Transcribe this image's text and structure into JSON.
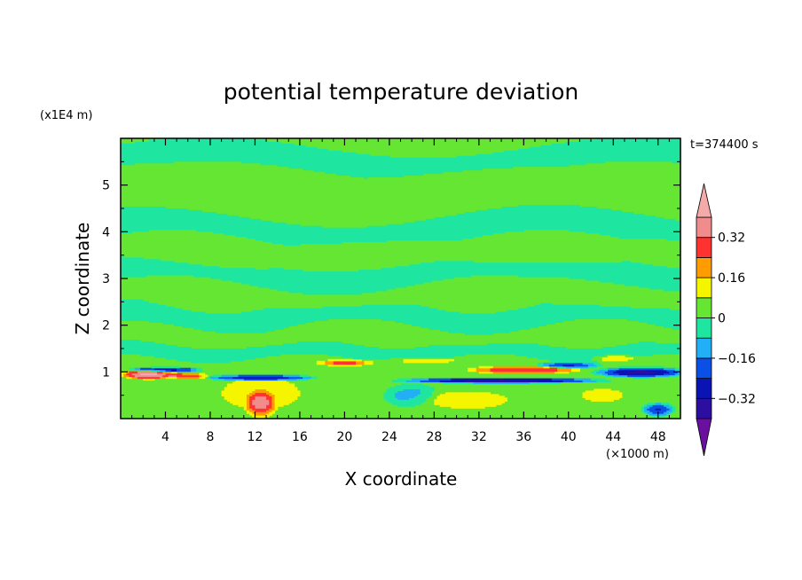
{
  "chart_data": {
    "type": "heatmap",
    "title": "potential temperature deviation",
    "xlabel": "X coordinate",
    "ylabel": "Z coordinate",
    "x_unit": "(×1000 m)",
    "y_unit": "(x1E4 m)",
    "time_label": "t=374400 s",
    "xlim": [
      0,
      50
    ],
    "ylim": [
      0,
      6
    ],
    "xticks": [
      4,
      8,
      12,
      16,
      20,
      24,
      28,
      32,
      36,
      40,
      44,
      48
    ],
    "yticks": [
      1,
      2,
      3,
      4,
      5
    ],
    "background_value": 0,
    "bands": [
      {
        "y": 5.55,
        "amp": 0.22,
        "th": 0.25,
        "value": -0.04,
        "ph": 0.3,
        "freq": 1.3
      },
      {
        "y": 5.1,
        "amp": 0.2,
        "th": 0.2,
        "value": 0.04,
        "ph": 1.1,
        "freq": 1.6
      },
      {
        "y": 4.55,
        "amp": 0.25,
        "th": 0.28,
        "value": 0.04,
        "ph": 2.0,
        "freq": 1.2
      },
      {
        "y": 4.1,
        "amp": 0.25,
        "th": 0.3,
        "value": -0.04,
        "ph": 0.7,
        "freq": 1.5
      },
      {
        "y": 3.55,
        "amp": 0.2,
        "th": 0.25,
        "value": 0.04,
        "ph": 2.6,
        "freq": 1.8
      },
      {
        "y": 3.1,
        "amp": 0.2,
        "th": 0.25,
        "value": -0.04,
        "ph": 1.4,
        "freq": 1.4
      },
      {
        "y": 2.65,
        "amp": 0.25,
        "th": 0.25,
        "value": 0.04,
        "ph": 0.2,
        "freq": 1.9
      },
      {
        "y": 2.2,
        "amp": 0.2,
        "th": 0.25,
        "value": -0.04,
        "ph": 2.2,
        "freq": 2.2
      },
      {
        "y": 1.8,
        "amp": 0.15,
        "th": 0.2,
        "value": 0.04,
        "ph": 0.9,
        "freq": 2.5
      },
      {
        "y": 1.45,
        "amp": 0.1,
        "th": 0.15,
        "value": -0.04,
        "ph": 1.7,
        "freq": 3.0
      }
    ],
    "blobs": [
      {
        "x": 12.5,
        "z": 0.88,
        "rx": 5.0,
        "rz": 0.07,
        "value": -0.38
      },
      {
        "x": 12.5,
        "z": 0.55,
        "rx": 5.0,
        "rz": 0.5,
        "value": 0.15
      },
      {
        "x": 12.5,
        "z": 0.3,
        "rx": 1.5,
        "rz": 0.35,
        "value": 0.25
      },
      {
        "x": 2.5,
        "z": 0.95,
        "rx": 3.0,
        "rz": 0.12,
        "value": 0.42
      },
      {
        "x": 6.0,
        "z": 0.92,
        "rx": 2.0,
        "rz": 0.08,
        "value": 0.3
      },
      {
        "x": 4.0,
        "z": 1.05,
        "rx": 3.5,
        "rz": 0.06,
        "value": -0.3
      },
      {
        "x": 20.0,
        "z": 1.2,
        "rx": 3.0,
        "rz": 0.08,
        "value": 0.28
      },
      {
        "x": 27.0,
        "z": 1.25,
        "rx": 5.0,
        "rz": 0.08,
        "value": 0.12
      },
      {
        "x": 34.0,
        "z": 0.82,
        "rx": 10.0,
        "rz": 0.06,
        "value": -0.38
      },
      {
        "x": 36.0,
        "z": 1.05,
        "rx": 6.0,
        "rz": 0.1,
        "value": 0.33
      },
      {
        "x": 40.0,
        "z": 1.15,
        "rx": 3.0,
        "rz": 0.08,
        "value": -0.25
      },
      {
        "x": 46.5,
        "z": 1.0,
        "rx": 4.5,
        "rz": 0.12,
        "value": -0.35
      },
      {
        "x": 44.0,
        "z": 1.3,
        "rx": 2.5,
        "rz": 0.1,
        "value": 0.14
      },
      {
        "x": 31.0,
        "z": 0.4,
        "rx": 6.0,
        "rz": 0.3,
        "value": 0.12
      },
      {
        "x": 26.0,
        "z": 0.5,
        "rx": 2.5,
        "rz": 0.25,
        "value": -0.12
      },
      {
        "x": 43.0,
        "z": 0.5,
        "rx": 4.0,
        "rz": 0.3,
        "value": 0.1
      },
      {
        "x": 48.0,
        "z": 0.2,
        "rx": 1.5,
        "rz": 0.15,
        "value": -0.25
      }
    ],
    "colorbar": {
      "levels": [
        -0.4,
        -0.32,
        -0.24,
        -0.16,
        -0.08,
        0,
        0.08,
        0.16,
        0.24,
        0.32,
        0.4
      ],
      "colors": [
        "#4b0082",
        "#2c0fa0",
        "#0a14b4",
        "#0a50e6",
        "#23aff5",
        "#1ee6a0",
        "#64e632",
        "#f5f500",
        "#ff9d00",
        "#ff3232",
        "#f08c8c",
        "#f0a8a8"
      ],
      "under_color": "#6a0fa0",
      "over_color": "#f5aaaa",
      "labels": [
        "0.32",
        "0.16",
        "0",
        "−0.16",
        "−0.32"
      ],
      "label_values": [
        0.32,
        0.16,
        0,
        -0.16,
        -0.32
      ]
    }
  }
}
